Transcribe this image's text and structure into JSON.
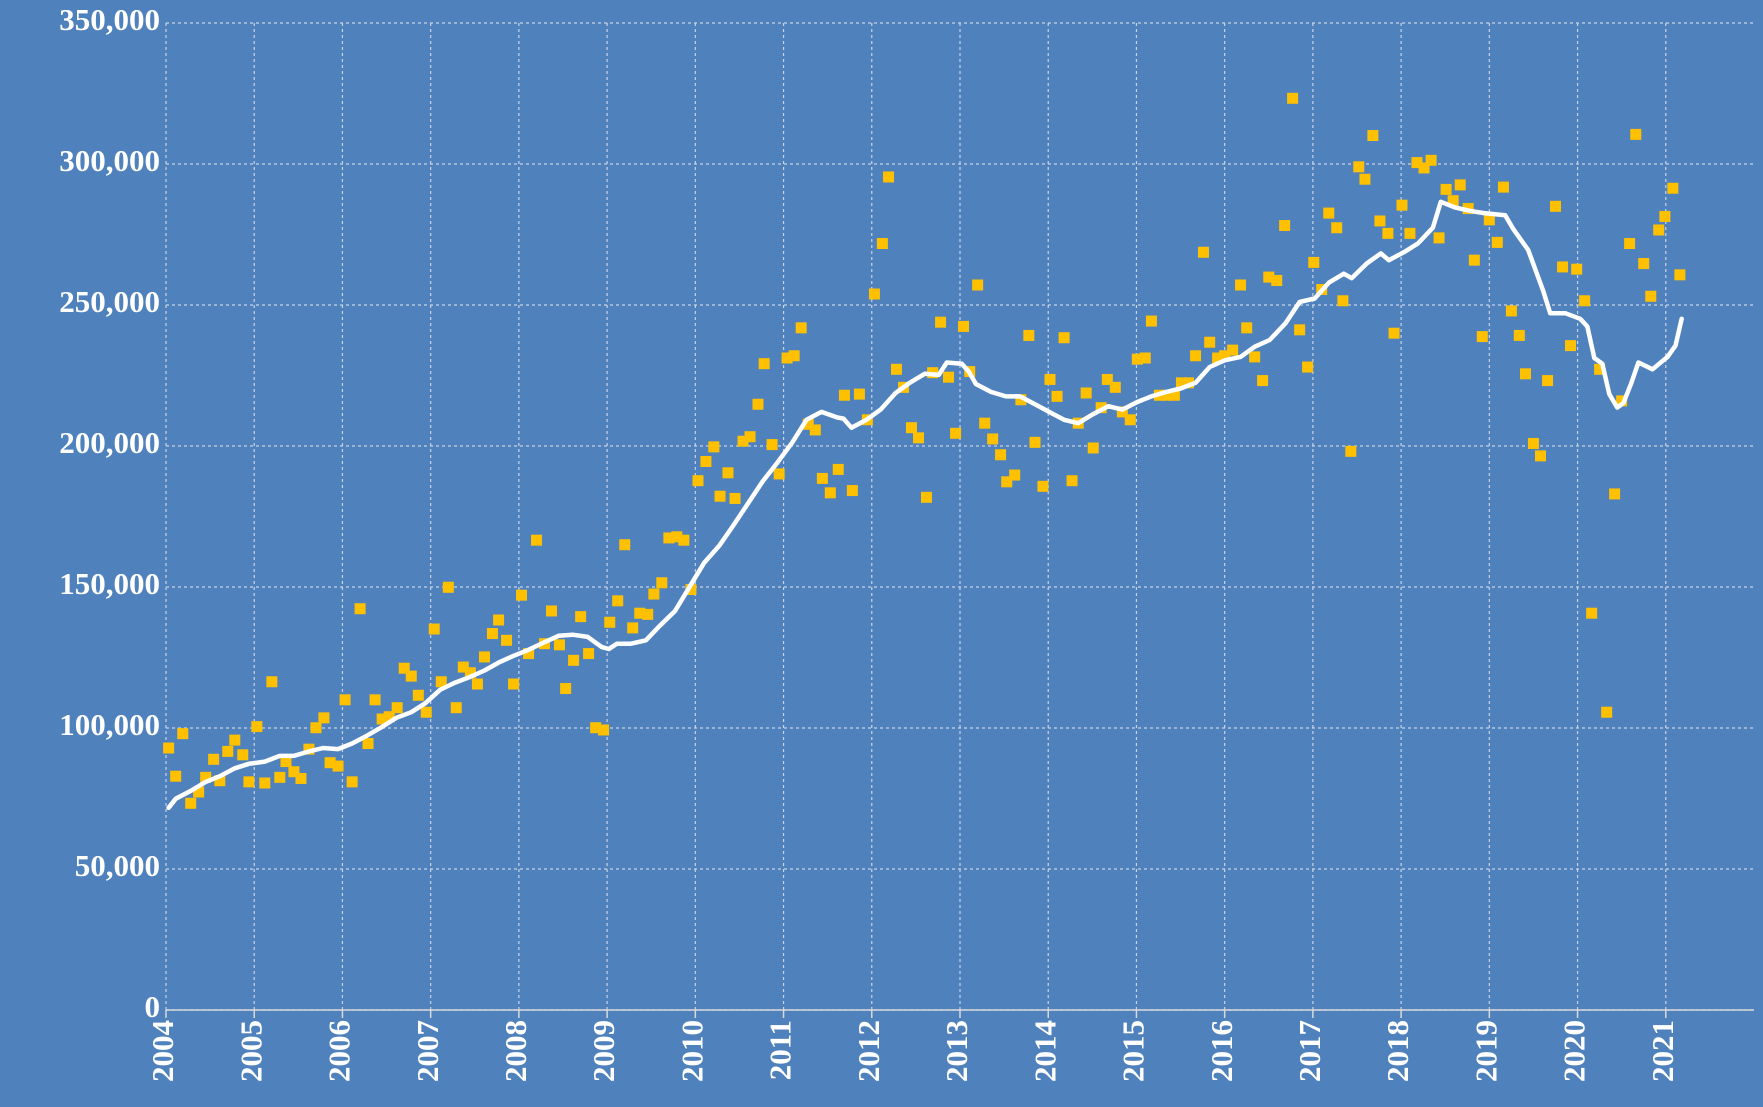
{
  "chart_data": {
    "type": "scatter",
    "xlim": [
      2004,
      2022
    ],
    "xticks": [
      2004,
      2005,
      2006,
      2007,
      2008,
      2009,
      2010,
      2011,
      2012,
      2013,
      2014,
      2015,
      2016,
      2017,
      2018,
      2019,
      2020,
      2021
    ],
    "ylim": [
      0,
      350000
    ],
    "yticks": [
      0,
      {
        "value": 50000,
        "label": "50,000"
      },
      {
        "value": 100000,
        "label": "100,000"
      },
      {
        "value": 150000,
        "label": "150,000"
      },
      {
        "value": 200000,
        "label": "200,000"
      },
      {
        "value": 250000,
        "label": "250,000"
      },
      {
        "value": 300000,
        "label": "300,000"
      },
      {
        "value": 350000,
        "label": "350,000"
      }
    ],
    "grid": true,
    "series": [
      {
        "type": "scatter",
        "color": "#ffc000",
        "x": [
          2004.03,
          2004.11,
          2004.19,
          2004.28,
          2004.37,
          2004.45,
          2004.54,
          2004.61,
          2004.7,
          2004.78,
          2004.87,
          2004.94,
          2005.03,
          2005.12,
          2005.2,
          2005.29,
          2005.36,
          2005.45,
          2005.53,
          2005.62,
          2005.7,
          2005.79,
          2005.86,
          2005.95,
          2006.03,
          2006.11,
          2006.2,
          2006.29,
          2006.37,
          2006.45,
          2006.53,
          2006.62,
          2006.7,
          2006.78,
          2006.86,
          2006.95,
          2007.04,
          2007.12,
          2007.2,
          2007.29,
          2007.37,
          2007.45,
          2007.53,
          2007.61,
          2007.7,
          2007.77,
          2007.86,
          2007.94,
          2008.03,
          2008.11,
          2008.2,
          2008.29,
          2008.37,
          2008.46,
          2008.53,
          2008.62,
          2008.7,
          2008.79,
          2008.87,
          2008.96,
          2009.03,
          2009.12,
          2009.2,
          2009.29,
          2009.37,
          2009.46,
          2009.53,
          2009.62,
          2009.7,
          2009.79,
          2009.87,
          2009.95,
          2010.03,
          2010.12,
          2010.21,
          2010.28,
          2010.37,
          2010.45,
          2010.54,
          2010.62,
          2010.71,
          2010.78,
          2010.87,
          2010.95,
          2011.04,
          2011.12,
          2011.2,
          2011.28,
          2011.36,
          2011.44,
          2011.53,
          2011.62,
          2011.69,
          2011.78,
          2011.86,
          2011.95,
          2012.03,
          2012.12,
          2012.19,
          2012.28,
          2012.36,
          2012.45,
          2012.53,
          2012.62,
          2012.69,
          2012.78,
          2012.87,
          2012.95,
          2013.04,
          2013.11,
          2013.2,
          2013.28,
          2013.37,
          2013.46,
          2013.53,
          2013.62,
          2013.69,
          2013.78,
          2013.85,
          2013.94,
          2014.02,
          2014.1,
          2014.18,
          2014.27,
          2014.34,
          2014.43,
          2014.51,
          2014.6,
          2014.67,
          2014.76,
          2014.84,
          2014.93,
          2015.01,
          2015.1,
          2015.17,
          2015.26,
          2015.34,
          2015.43,
          2015.51,
          2015.59,
          2015.67,
          2015.76,
          2015.83,
          2015.92,
          2016.0,
          2016.09,
          2016.18,
          2016.25,
          2016.34,
          2016.43,
          2016.5,
          2016.59,
          2016.68,
          2016.77,
          2016.85,
          2016.94,
          2017.01,
          2017.1,
          2017.18,
          2017.27,
          2017.34,
          2017.43,
          2017.52,
          2017.59,
          2017.68,
          2017.76,
          2017.85,
          2017.92,
          2018.01,
          2018.1,
          2018.18,
          2018.26,
          2018.34,
          2018.43,
          2018.51,
          2018.59,
          2018.67,
          2018.76,
          2018.83,
          2018.92,
          2019.0,
          2019.09,
          2019.16,
          2019.25,
          2019.34,
          2019.41,
          2019.5,
          2019.58,
          2019.66,
          2019.75,
          2019.83,
          2019.92,
          2019.99,
          2020.08,
          2020.16,
          2020.25,
          2020.33,
          2020.42,
          2020.5,
          2020.59,
          2020.66,
          2020.75,
          2020.83,
          2020.92,
          2020.99,
          2021.08,
          2021.16
        ],
        "values": [
          92900,
          82900,
          98000,
          73300,
          77300,
          82500,
          88900,
          81300,
          91700,
          95700,
          90500,
          80900,
          100500,
          80500,
          116400,
          82500,
          88100,
          84500,
          82100,
          92500,
          100100,
          103600,
          87700,
          86500,
          110000,
          80900,
          142300,
          94500,
          110000,
          103200,
          104000,
          107200,
          121200,
          118400,
          111600,
          105600,
          135100,
          116400,
          149900,
          107200,
          121600,
          119600,
          115600,
          125200,
          133500,
          138300,
          131100,
          115600,
          147100,
          126400,
          166600,
          129900,
          141500,
          129500,
          114000,
          124000,
          139500,
          126400,
          100100,
          99300,
          137500,
          145100,
          165000,
          135500,
          140700,
          140300,
          147500,
          151500,
          167400,
          167800,
          166600,
          149100,
          187700,
          194500,
          199700,
          182200,
          190500,
          181400,
          201700,
          203300,
          214800,
          229200,
          200500,
          190100,
          231200,
          232000,
          241900,
          207700,
          205700,
          188500,
          183400,
          191700,
          218000,
          184200,
          218400,
          209300,
          253900,
          271800,
          295400,
          227200,
          220800,
          206500,
          202900,
          181800,
          226000,
          243900,
          224400,
          204500,
          242400,
          226400,
          257100,
          208100,
          202500,
          196900,
          187300,
          189700,
          216400,
          239200,
          201300,
          185700,
          223600,
          217600,
          238400,
          187700,
          208100,
          218800,
          199300,
          213600,
          223600,
          220800,
          212100,
          209300,
          230800,
          231200,
          244300,
          218000,
          218000,
          218000,
          222400,
          222400,
          232000,
          268700,
          236800,
          231200,
          232000,
          234000,
          257100,
          241900,
          231600,
          223200,
          259900,
          258700,
          278200,
          323300,
          241200,
          228000,
          265100,
          255500,
          282600,
          277400,
          251500,
          198100,
          299000,
          294600,
          310100,
          279800,
          275400,
          240000,
          285400,
          275400,
          300500,
          298600,
          301300,
          273800,
          291000,
          287000,
          292600,
          284200,
          265900,
          238800,
          280200,
          272200,
          291800,
          247900,
          239200,
          225600,
          200900,
          196500,
          223200,
          285000,
          263500,
          235600,
          262700,
          251500,
          140700,
          227200,
          105600,
          183000,
          216000,
          271800,
          310500,
          264700,
          253100,
          276600,
          281400,
          291400,
          260700
        ]
      },
      {
        "type": "line",
        "color": "#ffffff",
        "x": [
          2004.03,
          2004.11,
          2004.28,
          2004.45,
          2004.61,
          2004.78,
          2004.94,
          2005.12,
          2005.29,
          2005.45,
          2005.62,
          2005.78,
          2005.95,
          2006.11,
          2006.28,
          2006.45,
          2006.61,
          2006.78,
          2006.94,
          2007.11,
          2007.27,
          2007.44,
          2007.61,
          2007.77,
          2007.94,
          2008.1,
          2008.28,
          2008.45,
          2008.61,
          2008.78,
          2008.94,
          2009.02,
          2009.11,
          2009.27,
          2009.44,
          2009.6,
          2009.77,
          2009.94,
          2010.1,
          2010.27,
          2010.43,
          2010.6,
          2010.76,
          2010.93,
          2011.1,
          2011.26,
          2011.43,
          2011.61,
          2011.68,
          2011.77,
          2011.94,
          2012.1,
          2012.27,
          2012.43,
          2012.6,
          2012.76,
          2012.85,
          2013.02,
          2013.1,
          2013.18,
          2013.35,
          2013.52,
          2013.68,
          2013.85,
          2014.01,
          2014.18,
          2014.34,
          2014.51,
          2014.68,
          2014.84,
          2015.01,
          2015.17,
          2015.34,
          2015.5,
          2015.67,
          2015.83,
          2016.0,
          2016.18,
          2016.34,
          2016.51,
          2016.69,
          2016.85,
          2017.02,
          2017.18,
          2017.35,
          2017.44,
          2017.61,
          2017.77,
          2017.86,
          2018.03,
          2018.19,
          2018.36,
          2018.45,
          2018.61,
          2018.78,
          2018.94,
          2019.18,
          2019.27,
          2019.44,
          2019.61,
          2019.69,
          2019.86,
          2020.03,
          2020.11,
          2020.19,
          2020.28,
          2020.36,
          2020.45,
          2020.52,
          2020.61,
          2020.69,
          2020.85,
          2021.02,
          2021.11,
          2021.18
        ],
        "values": [
          71700,
          74900,
          77700,
          80900,
          82900,
          85700,
          87300,
          88100,
          90100,
          90100,
          91700,
          92900,
          92500,
          94500,
          97300,
          100400,
          103600,
          105600,
          108800,
          113600,
          116000,
          118000,
          120400,
          123200,
          125600,
          127600,
          130300,
          132700,
          133100,
          132300,
          128700,
          128000,
          129900,
          129900,
          131100,
          136300,
          141500,
          150300,
          158600,
          164600,
          171800,
          179800,
          187300,
          194100,
          201300,
          209300,
          212100,
          210100,
          209700,
          206500,
          209300,
          212900,
          218800,
          222400,
          225600,
          225200,
          229600,
          229200,
          226400,
          222000,
          219200,
          217600,
          217600,
          214800,
          212100,
          209300,
          208100,
          211300,
          214100,
          212900,
          215600,
          217600,
          219200,
          220400,
          222400,
          228000,
          230400,
          231600,
          235200,
          237600,
          243500,
          251100,
          252300,
          257900,
          261100,
          259500,
          264700,
          268300,
          265900,
          268700,
          271800,
          277400,
          286600,
          284600,
          283400,
          282600,
          281800,
          277000,
          269500,
          255100,
          247100,
          247100,
          245100,
          242400,
          231200,
          229200,
          218400,
          213600,
          215200,
          222400,
          229600,
          227200,
          231600,
          235600,
          245100
        ]
      }
    ]
  }
}
